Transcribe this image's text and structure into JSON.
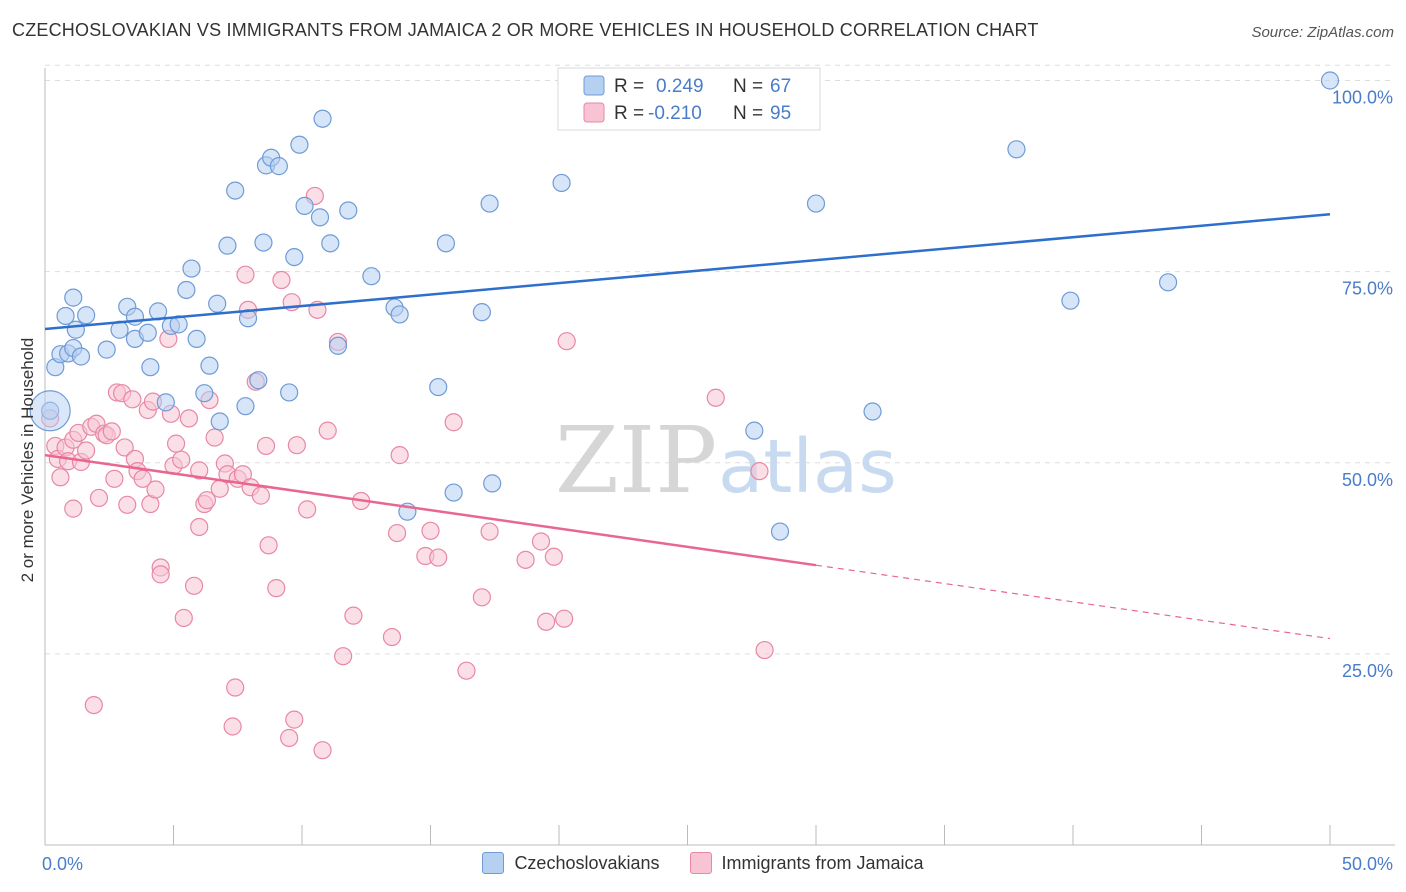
{
  "title": "CZECHOSLOVAKIAN VS IMMIGRANTS FROM JAMAICA 2 OR MORE VEHICLES IN HOUSEHOLD CORRELATION CHART",
  "source": "Source: ZipAtlas.com",
  "watermark": {
    "zip": "ZIP",
    "atlas": "atlas"
  },
  "colors": {
    "blue_fill": "#b6d0f2",
    "blue_stroke": "#6f9bd6",
    "blue_line": "#2e6fcc",
    "pink_fill": "#f8c4d4",
    "pink_stroke": "#e887a7",
    "pink_line": "#e8668f",
    "axis_text": "#4a7cc9",
    "grid": "#dddddd"
  },
  "legend_box": {
    "rows": [
      {
        "r_label": "R =",
        "r_value": "0.249",
        "n_label": "N =",
        "n_value": "67",
        "series": "blue"
      },
      {
        "r_label": "R =",
        "r_value": "-0.210",
        "n_label": "N =",
        "n_value": "95",
        "series": "pink"
      }
    ]
  },
  "legend_bottom": [
    {
      "label": "Czechoslovakians",
      "series": "blue"
    },
    {
      "label": "Immigrants from Jamaica",
      "series": "pink"
    }
  ],
  "chart_data": {
    "type": "scatter",
    "title": "CZECHOSLOVAKIAN VS IMMIGRANTS FROM JAMAICA 2 OR MORE VEHICLES IN HOUSEHOLD CORRELATION CHART",
    "xlabel": "",
    "ylabel": "2 or more Vehicles in Household",
    "xlim": [
      0,
      50
    ],
    "ylim": [
      0,
      102
    ],
    "x_tick_labels": [
      {
        "value": 0,
        "label": "0.0%"
      },
      {
        "value": 50,
        "label": "50.0%"
      }
    ],
    "y_tick_labels": [
      {
        "value": 25,
        "label": "25.0%"
      },
      {
        "value": 50,
        "label": "50.0%"
      },
      {
        "value": 75,
        "label": "75.0%"
      },
      {
        "value": 100,
        "label": "100.0%"
      }
    ],
    "grid": true,
    "series": [
      {
        "name": "Czechoslovakians",
        "color": "#b6d0f2",
        "trend": {
          "x": [
            0,
            50
          ],
          "y": [
            67.5,
            82.5
          ],
          "dashed_from": null
        },
        "points": [
          [
            0.2,
            56.8
          ],
          [
            0.4,
            62.5
          ],
          [
            0.6,
            64.2
          ],
          [
            0.8,
            69.2
          ],
          [
            0.9,
            64.3
          ],
          [
            1.1,
            65.0
          ],
          [
            1.1,
            71.6
          ],
          [
            1.2,
            67.4
          ],
          [
            1.4,
            63.9
          ],
          [
            1.6,
            69.3
          ],
          [
            2.4,
            64.8
          ],
          [
            2.9,
            67.4
          ],
          [
            3.2,
            70.4
          ],
          [
            3.5,
            66.2
          ],
          [
            3.5,
            69.1
          ],
          [
            4.0,
            67.0
          ],
          [
            4.1,
            62.5
          ],
          [
            4.4,
            69.8
          ],
          [
            4.7,
            57.9
          ],
          [
            4.9,
            67.9
          ],
          [
            5.2,
            68.1
          ],
          [
            5.5,
            72.6
          ],
          [
            5.7,
            75.4
          ],
          [
            5.9,
            66.2
          ],
          [
            6.2,
            59.1
          ],
          [
            6.4,
            62.7
          ],
          [
            6.7,
            70.8
          ],
          [
            6.8,
            55.4
          ],
          [
            7.1,
            78.4
          ],
          [
            7.4,
            85.6
          ],
          [
            7.8,
            57.4
          ],
          [
            7.9,
            68.9
          ],
          [
            8.3,
            60.8
          ],
          [
            8.5,
            78.8
          ],
          [
            8.6,
            88.9
          ],
          [
            8.8,
            89.9
          ],
          [
            9.1,
            88.8
          ],
          [
            9.5,
            59.2
          ],
          [
            9.7,
            76.9
          ],
          [
            9.9,
            91.6
          ],
          [
            10.1,
            83.6
          ],
          [
            10.7,
            82.1
          ],
          [
            10.8,
            95.0
          ],
          [
            11.1,
            78.7
          ],
          [
            11.4,
            65.3
          ],
          [
            11.8,
            83.0
          ],
          [
            12.7,
            74.4
          ],
          [
            13.6,
            70.3
          ],
          [
            13.8,
            69.4
          ],
          [
            14.1,
            43.6
          ],
          [
            15.3,
            59.9
          ],
          [
            15.6,
            78.7
          ],
          [
            15.9,
            46.1
          ],
          [
            17.0,
            69.7
          ],
          [
            17.3,
            83.9
          ],
          [
            17.4,
            47.3
          ],
          [
            20.1,
            86.6
          ],
          [
            23.2,
            100.0
          ],
          [
            26.6,
            100.0
          ],
          [
            27.6,
            54.2
          ],
          [
            28.6,
            41.0
          ],
          [
            30.0,
            83.9
          ],
          [
            32.2,
            56.7
          ],
          [
            37.8,
            91.0
          ],
          [
            39.9,
            71.2
          ],
          [
            43.7,
            73.6
          ],
          [
            50.0,
            100.0
          ]
        ]
      },
      {
        "name": "Immigrants from Jamaica",
        "color": "#f8c4d4",
        "trend": {
          "x": [
            0,
            50
          ],
          "y": [
            51.0,
            27.0
          ],
          "dashed_from": 30.0
        },
        "points": [
          [
            0.2,
            55.8
          ],
          [
            0.4,
            52.2
          ],
          [
            0.5,
            50.5
          ],
          [
            0.6,
            48.1
          ],
          [
            0.8,
            52.0
          ],
          [
            0.9,
            50.2
          ],
          [
            1.1,
            53.0
          ],
          [
            1.1,
            44.0
          ],
          [
            1.3,
            53.9
          ],
          [
            1.4,
            50.1
          ],
          [
            1.6,
            51.6
          ],
          [
            1.8,
            54.7
          ],
          [
            1.9,
            18.3
          ],
          [
            2.0,
            55.1
          ],
          [
            2.1,
            45.4
          ],
          [
            2.3,
            53.8
          ],
          [
            2.4,
            53.6
          ],
          [
            2.6,
            54.1
          ],
          [
            2.7,
            47.9
          ],
          [
            2.8,
            59.2
          ],
          [
            3.0,
            59.1
          ],
          [
            3.1,
            52.0
          ],
          [
            3.2,
            44.5
          ],
          [
            3.4,
            58.3
          ],
          [
            3.5,
            50.5
          ],
          [
            3.6,
            48.9
          ],
          [
            3.8,
            47.9
          ],
          [
            4.0,
            56.9
          ],
          [
            4.1,
            44.6
          ],
          [
            4.2,
            58.0
          ],
          [
            4.3,
            46.5
          ],
          [
            4.5,
            36.3
          ],
          [
            4.5,
            35.4
          ],
          [
            4.8,
            66.2
          ],
          [
            4.9,
            56.4
          ],
          [
            5.0,
            49.6
          ],
          [
            5.1,
            52.5
          ],
          [
            5.3,
            50.4
          ],
          [
            5.4,
            29.7
          ],
          [
            5.6,
            55.8
          ],
          [
            5.8,
            33.9
          ],
          [
            6.0,
            49.0
          ],
          [
            6.0,
            41.6
          ],
          [
            6.2,
            44.6
          ],
          [
            6.3,
            45.1
          ],
          [
            6.4,
            58.2
          ],
          [
            6.6,
            53.3
          ],
          [
            6.8,
            46.6
          ],
          [
            7.0,
            49.9
          ],
          [
            7.1,
            48.5
          ],
          [
            7.3,
            15.5
          ],
          [
            7.4,
            20.6
          ],
          [
            7.5,
            47.9
          ],
          [
            7.7,
            48.5
          ],
          [
            7.8,
            74.6
          ],
          [
            7.9,
            70.0
          ],
          [
            8.0,
            46.8
          ],
          [
            8.2,
            60.6
          ],
          [
            8.4,
            45.7
          ],
          [
            8.6,
            52.2
          ],
          [
            8.7,
            39.2
          ],
          [
            9.0,
            33.6
          ],
          [
            9.2,
            73.9
          ],
          [
            9.5,
            14.0
          ],
          [
            9.6,
            71.0
          ],
          [
            9.7,
            16.4
          ],
          [
            9.8,
            52.3
          ],
          [
            10.2,
            43.9
          ],
          [
            10.5,
            84.9
          ],
          [
            10.6,
            70.0
          ],
          [
            10.8,
            12.4
          ],
          [
            11.0,
            54.2
          ],
          [
            11.4,
            65.8
          ],
          [
            11.6,
            24.7
          ],
          [
            12.0,
            30.0
          ],
          [
            12.3,
            45.0
          ],
          [
            13.5,
            27.2
          ],
          [
            13.7,
            40.8
          ],
          [
            13.8,
            51.0
          ],
          [
            14.8,
            37.8
          ],
          [
            15.0,
            41.1
          ],
          [
            15.3,
            37.6
          ],
          [
            15.9,
            55.3
          ],
          [
            16.4,
            22.8
          ],
          [
            17.0,
            32.4
          ],
          [
            17.3,
            41.0
          ],
          [
            18.7,
            37.3
          ],
          [
            19.3,
            39.7
          ],
          [
            19.5,
            29.2
          ],
          [
            19.8,
            37.7
          ],
          [
            20.2,
            29.6
          ],
          [
            20.3,
            65.9
          ],
          [
            26.1,
            58.5
          ],
          [
            27.8,
            48.9
          ],
          [
            28.0,
            25.5
          ]
        ]
      }
    ]
  }
}
